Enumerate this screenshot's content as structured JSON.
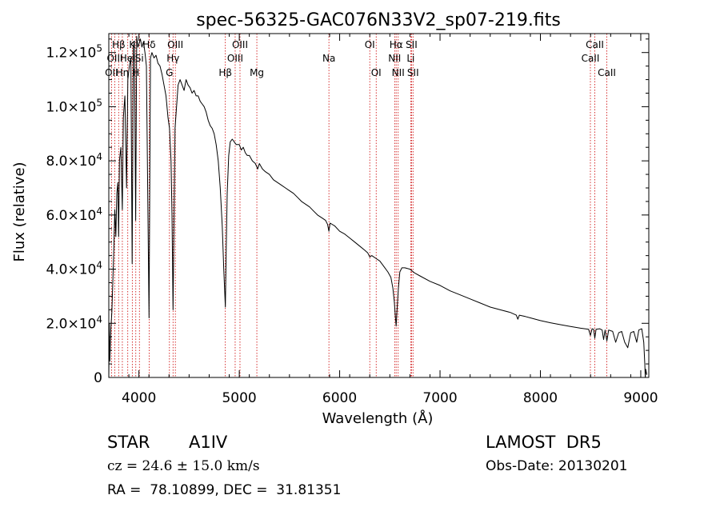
{
  "chart_data": {
    "type": "line",
    "title": "spec-56325-GAC076N33V2_sp07-219.fits",
    "xlabel": "Wavelength (Å)",
    "ylabel": "Flux (relative)",
    "xlim": [
      3700,
      9080
    ],
    "ylim": [
      0,
      127000
    ],
    "x_ticks": [
      4000,
      5000,
      6000,
      7000,
      8000,
      9000
    ],
    "y_ticks": [
      {
        "value": 0,
        "mantissa": "0",
        "exp": ""
      },
      {
        "value": 20000,
        "mantissa": "2.0×10",
        "exp": "4"
      },
      {
        "value": 40000,
        "mantissa": "4.0×10",
        "exp": "4"
      },
      {
        "value": 60000,
        "mantissa": "6.0×10",
        "exp": "4"
      },
      {
        "value": 80000,
        "mantissa": "8.0×10",
        "exp": "4"
      },
      {
        "value": 100000,
        "mantissa": "1.0×10",
        "exp": "5"
      },
      {
        "value": 120000,
        "mantissa": "1.2×10",
        "exp": "5"
      }
    ],
    "grid": false,
    "series": [
      {
        "color": "#000000",
        "points": [
          [
            3700,
            0
          ],
          [
            3705,
            20000
          ],
          [
            3710,
            6000
          ],
          [
            3720,
            18000
          ],
          [
            3730,
            24000
          ],
          [
            3740,
            35000
          ],
          [
            3750,
            48000
          ],
          [
            3760,
            62000
          ],
          [
            3770,
            52000
          ],
          [
            3780,
            68000
          ],
          [
            3790,
            72000
          ],
          [
            3798,
            52000
          ],
          [
            3806,
            80000
          ],
          [
            3820,
            85000
          ],
          [
            3835,
            62000
          ],
          [
            3845,
            96000
          ],
          [
            3860,
            104000
          ],
          [
            3877,
            70000
          ],
          [
            3890,
            110000
          ],
          [
            3905,
            115000
          ],
          [
            3920,
            118000
          ],
          [
            3933,
            42000
          ],
          [
            3945,
            122000
          ],
          [
            3955,
            124000
          ],
          [
            3968,
            58000
          ],
          [
            3978,
            126000
          ],
          [
            3990,
            122000
          ],
          [
            4000,
            123000
          ],
          [
            4015,
            125000
          ],
          [
            4030,
            122000
          ],
          [
            4045,
            124000
          ],
          [
            4060,
            120000
          ],
          [
            4075,
            115000
          ],
          [
            4101,
            22000
          ],
          [
            4115,
            118000
          ],
          [
            4130,
            120000
          ],
          [
            4150,
            118000
          ],
          [
            4170,
            119000
          ],
          [
            4190,
            116000
          ],
          [
            4210,
            115000
          ],
          [
            4230,
            112000
          ],
          [
            4250,
            108000
          ],
          [
            4270,
            104000
          ],
          [
            4290,
            96000
          ],
          [
            4305,
            92000
          ],
          [
            4320,
            80000
          ],
          [
            4330,
            60000
          ],
          [
            4340,
            25000
          ],
          [
            4350,
            60000
          ],
          [
            4360,
            92000
          ],
          [
            4375,
            100000
          ],
          [
            4390,
            108000
          ],
          [
            4410,
            110000
          ],
          [
            4430,
            108000
          ],
          [
            4450,
            106000
          ],
          [
            4470,
            110000
          ],
          [
            4490,
            108000
          ],
          [
            4510,
            107000
          ],
          [
            4530,
            105000
          ],
          [
            4550,
            106000
          ],
          [
            4570,
            104000
          ],
          [
            4590,
            104000
          ],
          [
            4610,
            102000
          ],
          [
            4630,
            101000
          ],
          [
            4650,
            100000
          ],
          [
            4670,
            98000
          ],
          [
            4690,
            95000
          ],
          [
            4710,
            93000
          ],
          [
            4730,
            92000
          ],
          [
            4750,
            90000
          ],
          [
            4770,
            86000
          ],
          [
            4790,
            80000
          ],
          [
            4810,
            70000
          ],
          [
            4830,
            56000
          ],
          [
            4845,
            40000
          ],
          [
            4861,
            26000
          ],
          [
            4870,
            48000
          ],
          [
            4880,
            68000
          ],
          [
            4895,
            82000
          ],
          [
            4910,
            87000
          ],
          [
            4930,
            88000
          ],
          [
            4950,
            87000
          ],
          [
            4970,
            86000
          ],
          [
            5000,
            86000
          ],
          [
            5020,
            84000
          ],
          [
            5040,
            85000
          ],
          [
            5060,
            83000
          ],
          [
            5080,
            82000
          ],
          [
            5100,
            82000
          ],
          [
            5130,
            80000
          ],
          [
            5160,
            79000
          ],
          [
            5183,
            77000
          ],
          [
            5200,
            79000
          ],
          [
            5230,
            77000
          ],
          [
            5260,
            76000
          ],
          [
            5300,
            75000
          ],
          [
            5340,
            73000
          ],
          [
            5380,
            72000
          ],
          [
            5420,
            71000
          ],
          [
            5460,
            70000
          ],
          [
            5500,
            69000
          ],
          [
            5540,
            68000
          ],
          [
            5580,
            66500
          ],
          [
            5620,
            65000
          ],
          [
            5660,
            64000
          ],
          [
            5700,
            63000
          ],
          [
            5740,
            61500
          ],
          [
            5780,
            60000
          ],
          [
            5820,
            59000
          ],
          [
            5860,
            58000
          ],
          [
            5880,
            56500
          ],
          [
            5893,
            54000
          ],
          [
            5905,
            57000
          ],
          [
            5950,
            56000
          ],
          [
            6000,
            54000
          ],
          [
            6050,
            53000
          ],
          [
            6100,
            51500
          ],
          [
            6150,
            50000
          ],
          [
            6200,
            48500
          ],
          [
            6250,
            47000
          ],
          [
            6280,
            46000
          ],
          [
            6300,
            44500
          ],
          [
            6320,
            45000
          ],
          [
            6360,
            44000
          ],
          [
            6400,
            43000
          ],
          [
            6440,
            41000
          ],
          [
            6480,
            39000
          ],
          [
            6510,
            37000
          ],
          [
            6530,
            33000
          ],
          [
            6545,
            28000
          ],
          [
            6556,
            22000
          ],
          [
            6563,
            19000
          ],
          [
            6570,
            24000
          ],
          [
            6585,
            33000
          ],
          [
            6600,
            39000
          ],
          [
            6620,
            40500
          ],
          [
            6650,
            40500
          ],
          [
            6700,
            40000
          ],
          [
            6750,
            38500
          ],
          [
            6800,
            37500
          ],
          [
            6900,
            35500
          ],
          [
            7000,
            34000
          ],
          [
            7100,
            32000
          ],
          [
            7200,
            30500
          ],
          [
            7300,
            29000
          ],
          [
            7400,
            27500
          ],
          [
            7500,
            26000
          ],
          [
            7600,
            25000
          ],
          [
            7700,
            24000
          ],
          [
            7760,
            23000
          ],
          [
            7775,
            21500
          ],
          [
            7790,
            23000
          ],
          [
            7850,
            22500
          ],
          [
            7900,
            22000
          ],
          [
            8000,
            21000
          ],
          [
            8100,
            20200
          ],
          [
            8200,
            19500
          ],
          [
            8300,
            18800
          ],
          [
            8400,
            18200
          ],
          [
            8480,
            17800
          ],
          [
            8498,
            15500
          ],
          [
            8515,
            18000
          ],
          [
            8530,
            17800
          ],
          [
            8542,
            14500
          ],
          [
            8555,
            17800
          ],
          [
            8590,
            18000
          ],
          [
            8615,
            17500
          ],
          [
            8630,
            14000
          ],
          [
            8645,
            17500
          ],
          [
            8662,
            13500
          ],
          [
            8680,
            17500
          ],
          [
            8720,
            17000
          ],
          [
            8750,
            13000
          ],
          [
            8780,
            16500
          ],
          [
            8810,
            17000
          ],
          [
            8840,
            13000
          ],
          [
            8870,
            11000
          ],
          [
            8900,
            16500
          ],
          [
            8930,
            17000
          ],
          [
            8960,
            13000
          ],
          [
            8980,
            17500
          ],
          [
            9010,
            18000
          ],
          [
            9030,
            13000
          ],
          [
            9040,
            5000
          ],
          [
            9045,
            0
          ],
          [
            9050,
            3000
          ],
          [
            9060,
            1000
          ]
        ]
      }
    ],
    "lines": [
      {
        "label": "Hβ",
        "wave": 3798,
        "row": 0
      },
      {
        "label": "OII",
        "wave": 3727,
        "row": 2
      },
      {
        "label": "OIII",
        "wave": 3760,
        "row": 1
      },
      {
        "label": "Hη",
        "wave": 3835,
        "row": 2
      },
      {
        "label": "HeI",
        "wave": 3889,
        "row": 1
      },
      {
        "label": "K",
        "wave": 3934,
        "row": 0
      },
      {
        "label": "H",
        "wave": 3969,
        "row": 2
      },
      {
        "label": "Si",
        "wave": 4005,
        "row": 1
      },
      {
        "label": "Hδ",
        "wave": 4102,
        "row": 0
      },
      {
        "label": "OIII",
        "wave": 4363,
        "row": 0
      },
      {
        "label": "Hγ",
        "wave": 4340,
        "row": 1
      },
      {
        "label": "G",
        "wave": 4304,
        "row": 2
      },
      {
        "label": "Hβ",
        "wave": 4861,
        "row": 2
      },
      {
        "label": "OIII",
        "wave": 4959,
        "row": 1
      },
      {
        "label": "OIII",
        "wave": 5007,
        "row": 0
      },
      {
        "label": "Mg",
        "wave": 5175,
        "row": 2
      },
      {
        "label": "Na",
        "wave": 5893,
        "row": 1
      },
      {
        "label": "OI",
        "wave": 6300,
        "row": 0
      },
      {
        "label": "OI",
        "wave": 6364,
        "row": 2
      },
      {
        "label": "Hα",
        "wave": 6563,
        "row": 0
      },
      {
        "label": "NII",
        "wave": 6548,
        "row": 1
      },
      {
        "label": "NII",
        "wave": 6583,
        "row": 2
      },
      {
        "label": "SII",
        "wave": 6716,
        "row": 0
      },
      {
        "label": "SII",
        "wave": 6731,
        "row": 2
      },
      {
        "label": "Li",
        "wave": 6708,
        "row": 1
      },
      {
        "label": "CaII",
        "wave": 8542,
        "row": 0
      },
      {
        "label": "CaII",
        "wave": 8498,
        "row": 1
      },
      {
        "label": "CaII",
        "wave": 8662,
        "row": 2
      }
    ],
    "line_color": "#cc0000"
  },
  "info": {
    "object_type": "STAR",
    "subclass": "A1IV",
    "survey": "LAMOST  DR5",
    "cz_label": "cz = 24.6 ± 15.0 km/s",
    "obs_date": "Obs-Date: 20130201",
    "coords": "RA =  78.10899, DEC =  31.81351"
  }
}
